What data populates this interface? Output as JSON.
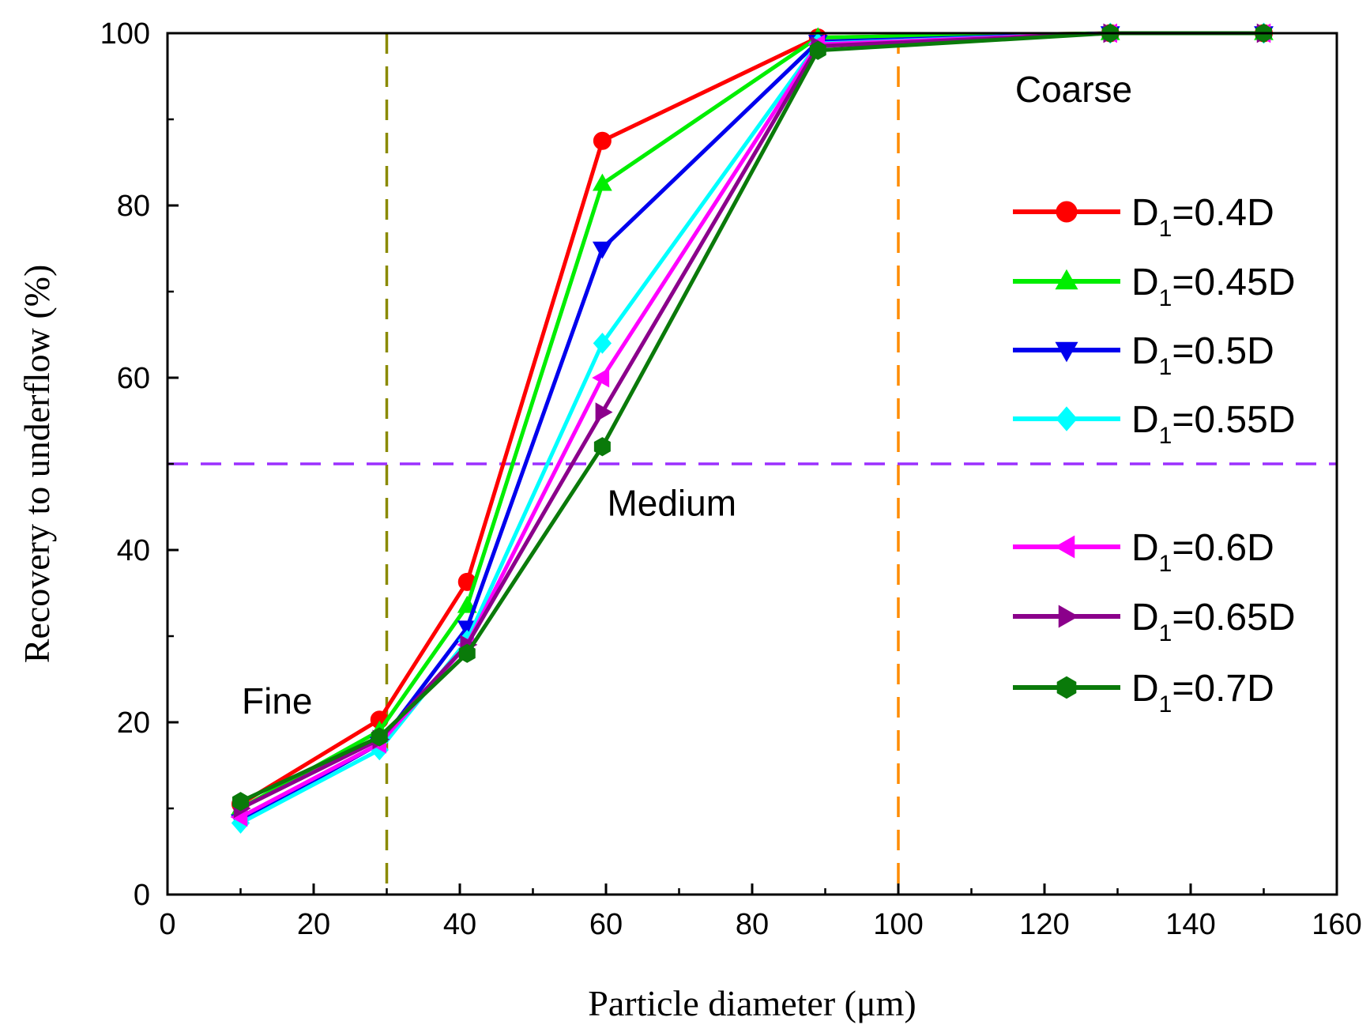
{
  "chart_data": {
    "type": "line",
    "title": "",
    "xlabel": "Particle diameter (μm)",
    "ylabel": "Recovery to underflow (%)",
    "xlim": [
      0,
      160
    ],
    "ylim": [
      0,
      100
    ],
    "xticks": [
      0,
      20,
      40,
      60,
      80,
      100,
      120,
      140,
      160
    ],
    "yticks": [
      0,
      20,
      40,
      60,
      80,
      100
    ],
    "grid": false,
    "legend_position": "right",
    "x": [
      10,
      29,
      41,
      59.5,
      89,
      129,
      150
    ],
    "series": [
      {
        "name": "D1=0.4D",
        "label_main": "D",
        "label_sub": "1",
        "label_rest": "=0.4D",
        "color": "#ff0000",
        "marker": "circle",
        "values": [
          10.5,
          20.3,
          36.3,
          87.5,
          99.5,
          100,
          100
        ]
      },
      {
        "name": "D1=0.45D",
        "label_main": "D",
        "label_sub": "1",
        "label_rest": "=0.45D",
        "color": "#00ee00",
        "marker": "triangle-up",
        "values": [
          10.0,
          19.0,
          33.5,
          82.5,
          99.5,
          100,
          100
        ]
      },
      {
        "name": "D1=0.5D",
        "label_main": "D",
        "label_sub": "1",
        "label_rest": "=0.5D",
        "color": "#0000ee",
        "marker": "triangle-down",
        "values": [
          8.5,
          17.5,
          31.0,
          75.0,
          99.0,
          100,
          100
        ]
      },
      {
        "name": "D1=0.55D",
        "label_main": "D",
        "label_sub": "1",
        "label_rest": "=0.55D",
        "color": "#00ffff",
        "marker": "diamond",
        "values": [
          8.3,
          16.8,
          29.5,
          64.0,
          98.8,
          100,
          100
        ]
      },
      {
        "name": "D1=0.6D",
        "label_main": "D",
        "label_sub": "1",
        "label_rest": "=0.6D",
        "color": "#ff00ff",
        "marker": "triangle-left",
        "values": [
          9.0,
          17.5,
          29.0,
          60.0,
          98.7,
          100,
          100
        ]
      },
      {
        "name": "D1=0.65D",
        "label_main": "D",
        "label_sub": "1",
        "label_rest": "=0.65D",
        "color": "#8b008b",
        "marker": "triangle-right",
        "values": [
          10.0,
          18.0,
          29.0,
          56.0,
          98.5,
          100,
          100
        ]
      },
      {
        "name": "D1=0.7D",
        "label_main": "D",
        "label_sub": "1",
        "label_rest": "=0.7D",
        "color": "#0a7a0a",
        "marker": "hexagon",
        "values": [
          10.8,
          18.3,
          28.0,
          52.0,
          98.0,
          100,
          100
        ]
      }
    ],
    "reference_lines": [
      {
        "name": "fine-medium-boundary",
        "orientation": "vertical",
        "value": 30,
        "color": "#8a8a00"
      },
      {
        "name": "medium-coarse-boundary",
        "orientation": "vertical",
        "value": 100,
        "color": "#ff8c00"
      },
      {
        "name": "fifty-percent-line",
        "orientation": "horizontal",
        "value": 50,
        "color": "#9b30ff"
      }
    ],
    "annotations": [
      {
        "text": "Fine",
        "x": 15,
        "y": 21
      },
      {
        "text": "Medium",
        "x": 69,
        "y": 44
      },
      {
        "text": "Coarse",
        "x": 124,
        "y": 92
      }
    ]
  }
}
